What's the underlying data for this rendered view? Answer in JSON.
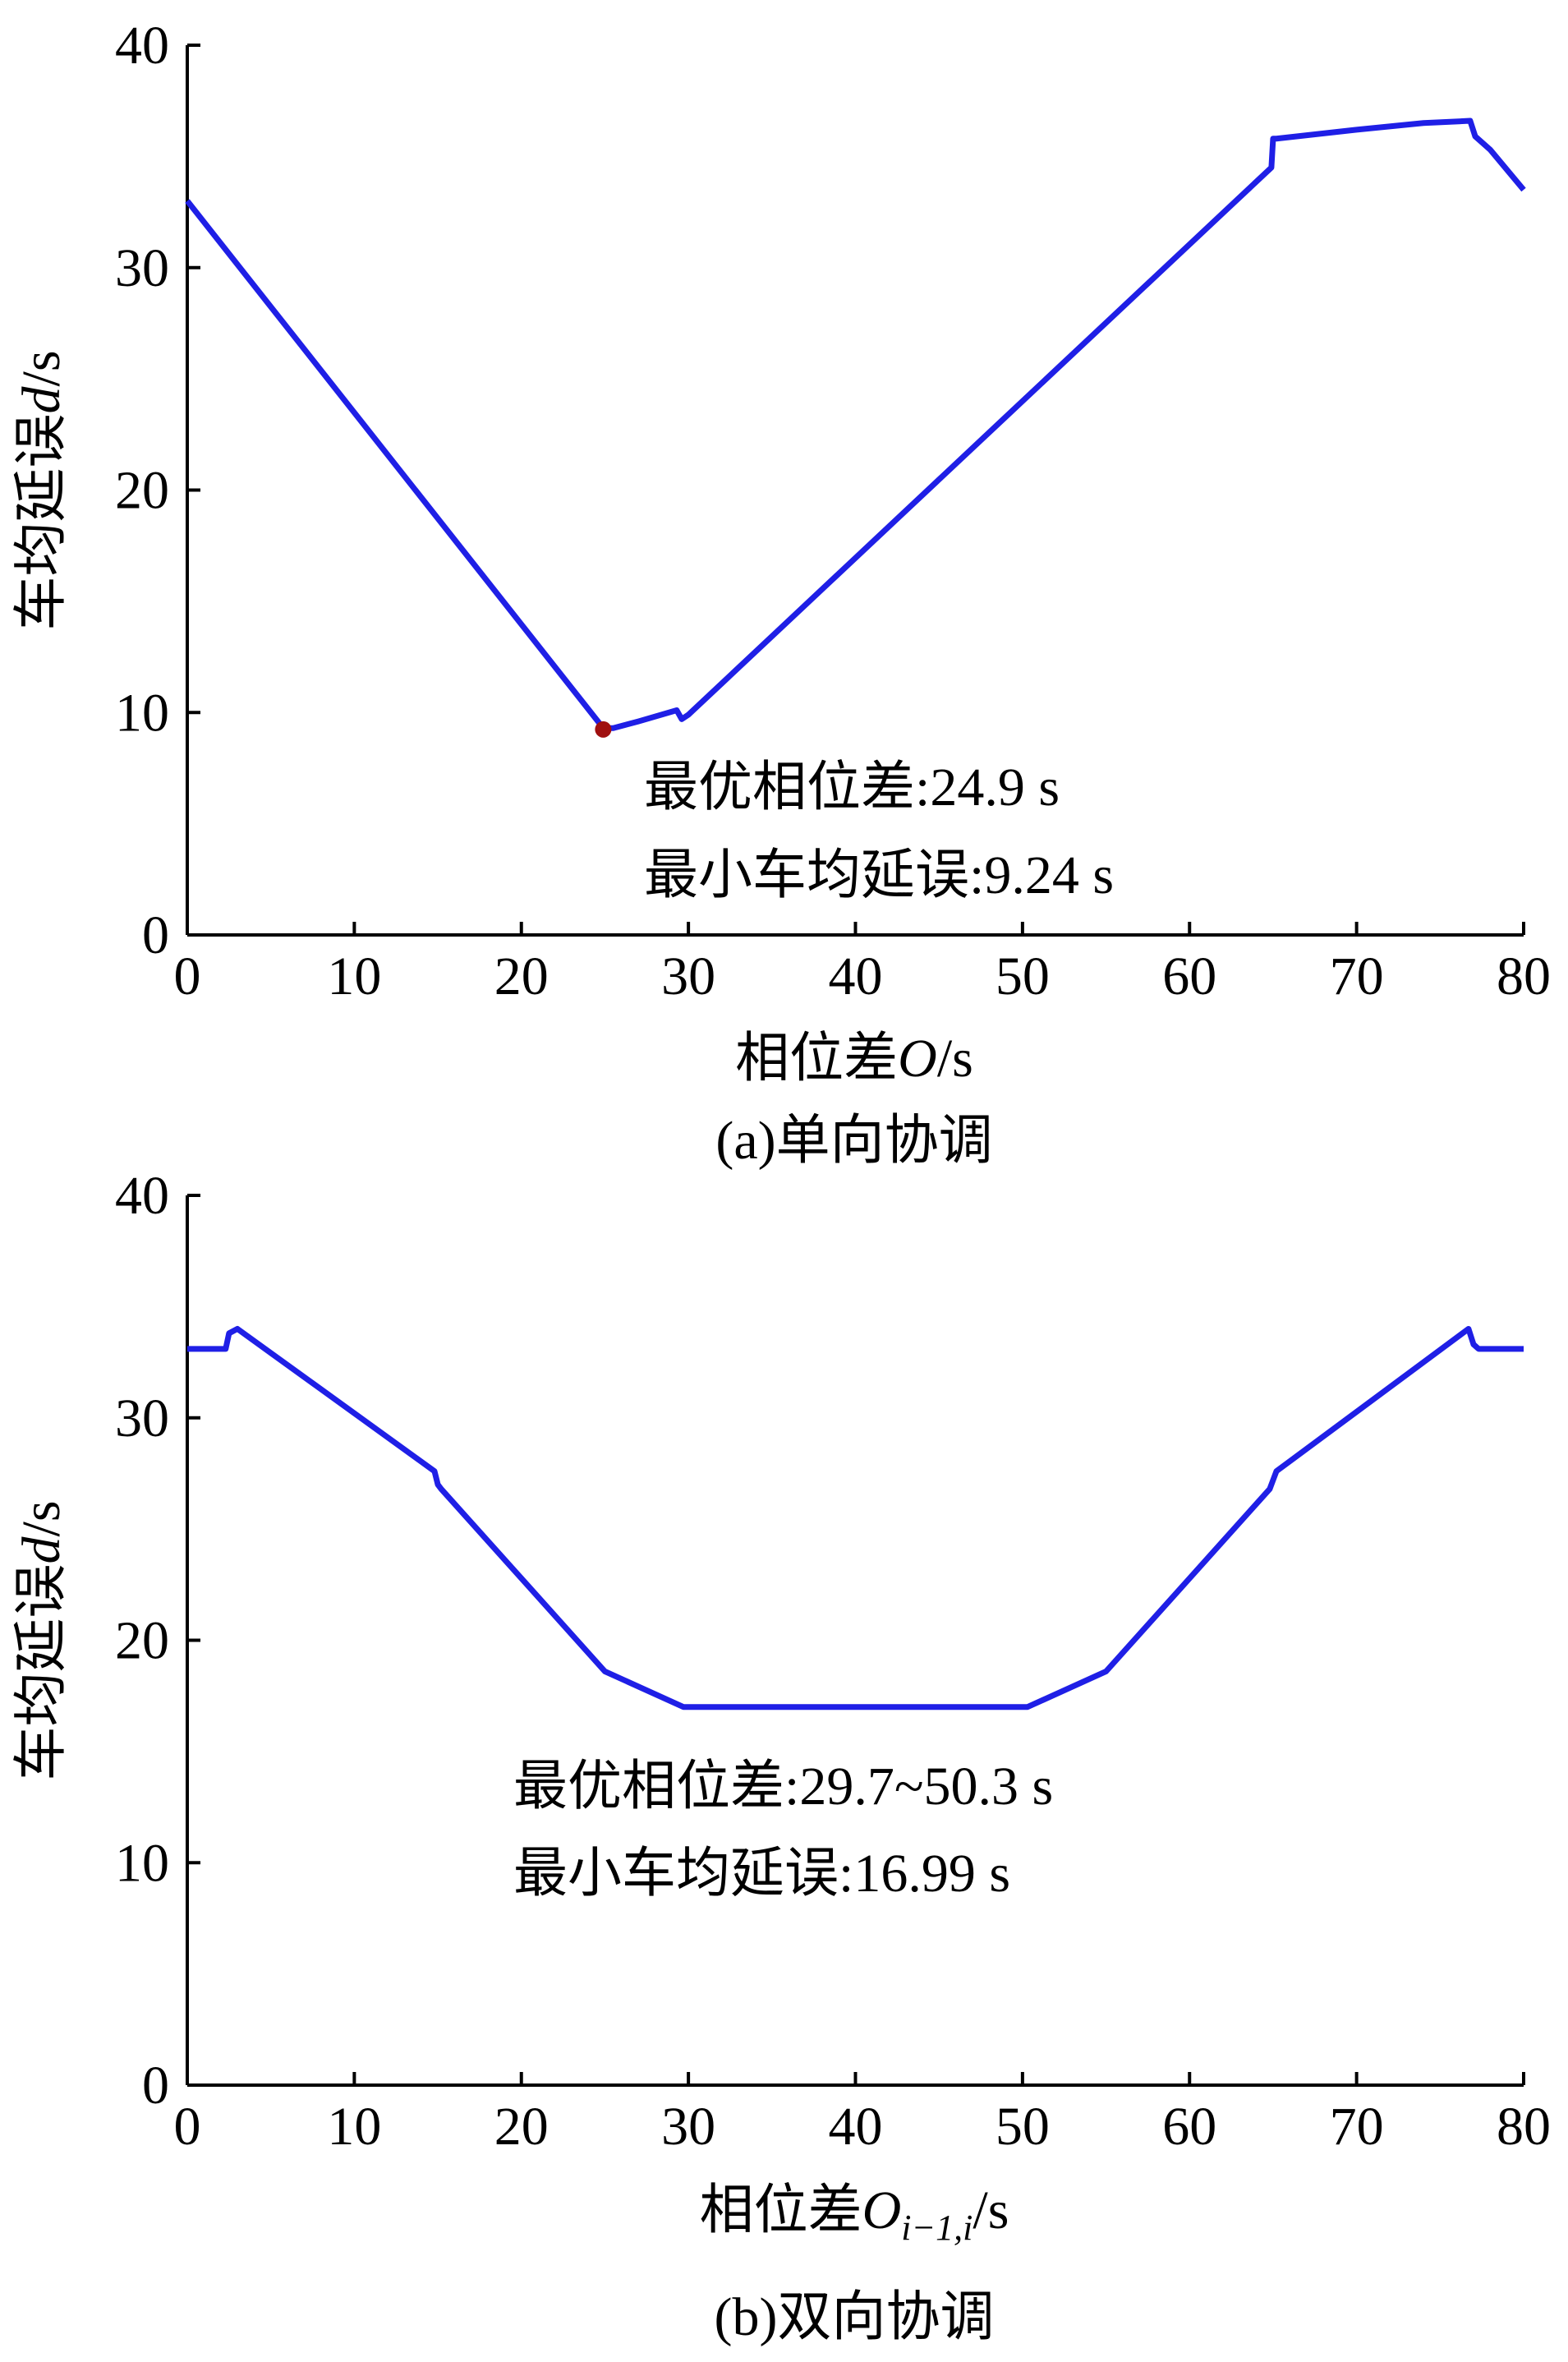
{
  "chart_data": [
    {
      "type": "line",
      "caption": "(a)单向协调",
      "xlabel": {
        "prefix": "相位差",
        "symbol": "O",
        "sub": "",
        "unit": "/s"
      },
      "ylabel": {
        "prefix": "车均延误",
        "symbol": "d",
        "unit": "/s"
      },
      "xlim": [
        0,
        80
      ],
      "ylim": [
        0,
        40
      ],
      "xticks": [
        0,
        10,
        20,
        30,
        40,
        50,
        60,
        70,
        80
      ],
      "yticks": [
        0,
        10,
        20,
        30,
        40
      ],
      "series": [
        {
          "color": "#1f1fe6",
          "x": [
            0,
            24.9,
            25.5,
            27,
            29.3,
            29.6,
            30,
            64.9,
            65.0,
            65.2,
            70,
            74,
            76.8,
            77.1,
            78,
            80
          ],
          "y": [
            33,
            9.3,
            9.3,
            9.6,
            10.1,
            9.7,
            9.9,
            34.5,
            35.8,
            35.8,
            36.2,
            36.5,
            36.6,
            35.9,
            35.3,
            33.5
          ]
        }
      ],
      "optimum": {
        "x": 24.9,
        "y": 9.24,
        "color": "#a01010"
      },
      "annotations": [
        "最优相位差:24.9 s",
        "最小车均延误:9.24 s"
      ]
    },
    {
      "type": "line",
      "caption": "(b)双向协调",
      "xlabel": {
        "prefix": "相位差",
        "symbol": "O",
        "sub": "i−1,i",
        "unit": "/s"
      },
      "ylabel": {
        "prefix": "车均延误",
        "symbol": "d",
        "unit": "/s"
      },
      "xlim": [
        0,
        80
      ],
      "ylim": [
        0,
        40
      ],
      "xticks": [
        0,
        10,
        20,
        30,
        40,
        50,
        60,
        70,
        80
      ],
      "yticks": [
        0,
        10,
        20,
        30,
        40
      ],
      "series": [
        {
          "color": "#1f1fe6",
          "x": [
            0,
            2.3,
            2.5,
            3,
            14.8,
            15.0,
            15.2,
            25,
            29.7,
            50.3,
            55,
            64.8,
            65.0,
            65.2,
            76.7,
            77.0,
            77.3,
            80
          ],
          "y": [
            33.1,
            33.1,
            33.8,
            34.0,
            27.6,
            27.0,
            26.8,
            18.6,
            17.0,
            17.0,
            18.6,
            26.8,
            27.2,
            27.6,
            34.0,
            33.3,
            33.1,
            33.1
          ]
        }
      ],
      "annotations": [
        "最优相位差:29.7~50.3 s",
        "最小车均延误:16.99 s"
      ]
    }
  ]
}
